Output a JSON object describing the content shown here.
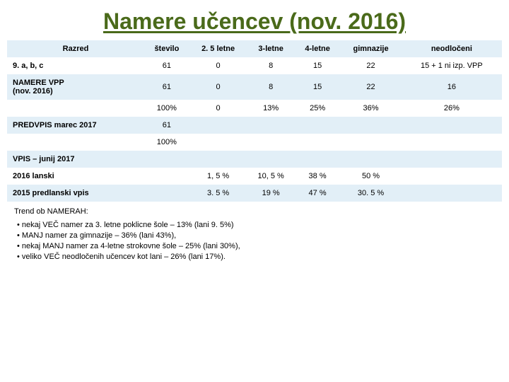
{
  "title": "Namere učencev (nov. 2016)",
  "columns": [
    "Razred",
    "število",
    "2. 5 letne",
    "3-letne",
    "4-letne",
    "gimnazije",
    "neodločeni"
  ],
  "rows": [
    {
      "label": "9. a, b, c",
      "cells": [
        "61",
        "0",
        "8",
        "15",
        "22",
        "15 + 1 ni izp. VPP"
      ]
    },
    {
      "label": "NAMERE VPP\n (nov. 2016)",
      "cells": [
        "61",
        "0",
        "8",
        "15",
        "22",
        "16"
      ]
    },
    {
      "label": "",
      "cells": [
        "100%",
        "0",
        "13%",
        "25%",
        "36%",
        "26%"
      ]
    },
    {
      "label": "PREDVPIS marec 2017",
      "cells": [
        "61",
        "",
        "",
        "",
        "",
        ""
      ]
    },
    {
      "label": "",
      "cells": [
        "100%",
        "",
        "",
        "",
        "",
        ""
      ]
    },
    {
      "label": "VPIS – junij 2017",
      "cells": [
        "",
        "",
        "",
        "",
        "",
        ""
      ]
    },
    {
      "label": "2016 lanski",
      "cells": [
        "",
        "1, 5 %",
        "10, 5 %",
        "38 %",
        "50 %",
        ""
      ]
    },
    {
      "label": "2015 predlanski vpis",
      "cells": [
        "",
        "3. 5 %",
        "19 %",
        "47 %",
        "30. 5 %",
        ""
      ]
    }
  ],
  "trend_title": "Trend ob NAMERAH:",
  "trend_items": [
    "nekaj VEČ namer za 3. letne poklicne šole – 13% (lani 9. 5%)",
    "MANJ namer za gimnazije – 36% (lani 43%),",
    "nekaj MANJ namer za 4-letne strokovne šole – 25% (lani 30%),",
    "veliko VEČ neodločenih učencev kot lani – 26% (lani 17%)."
  ],
  "colors": {
    "title": "#4a6a1a",
    "row_alt": "#e2eff7",
    "row_base": "#ffffff"
  }
}
